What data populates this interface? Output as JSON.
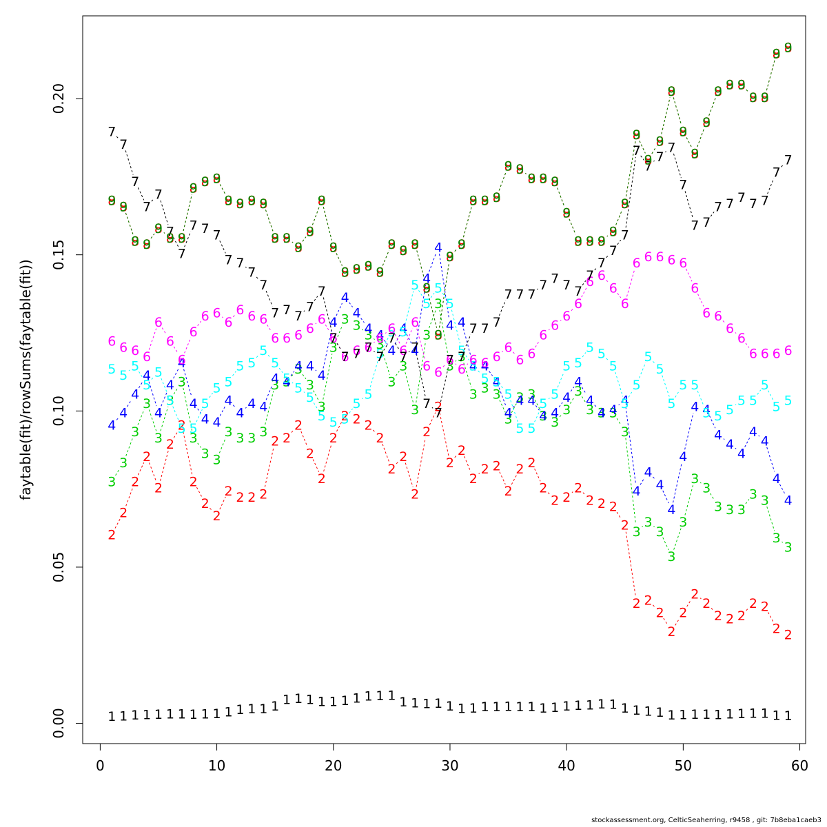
{
  "chart_data": {
    "type": "line",
    "title": "",
    "xlabel": "",
    "ylabel": "faytable(fit)/rowSums(faytable(fit))",
    "xlim": [
      -1.5,
      60.5
    ],
    "ylim": [
      -0.0065,
      0.2265
    ],
    "xticks": [
      0,
      10,
      20,
      30,
      40,
      50,
      60
    ],
    "yticks": [
      0.0,
      0.05,
      0.1,
      0.15,
      0.2
    ],
    "ytick_labels": [
      "0.00",
      "0.05",
      "0.10",
      "0.15",
      "0.20"
    ],
    "grid": false,
    "legend": "none",
    "x": [
      1,
      2,
      3,
      4,
      5,
      6,
      7,
      8,
      9,
      10,
      11,
      12,
      13,
      14,
      15,
      16,
      17,
      18,
      19,
      20,
      21,
      22,
      23,
      24,
      25,
      26,
      27,
      28,
      29,
      30,
      31,
      32,
      33,
      34,
      35,
      36,
      37,
      38,
      39,
      40,
      41,
      42,
      43,
      44,
      45,
      46,
      47,
      48,
      49,
      50,
      51,
      52,
      53,
      54,
      55,
      56,
      57,
      58,
      59
    ],
    "series": [
      {
        "label": "1",
        "color": "#000000",
        "values": [
          0.0023,
          0.0024,
          0.0028,
          0.0029,
          0.003,
          0.0031,
          0.0031,
          0.003,
          0.0031,
          0.0032,
          0.0038,
          0.0045,
          0.0048,
          0.0047,
          0.0056,
          0.0077,
          0.0081,
          0.0077,
          0.0071,
          0.0071,
          0.0074,
          0.0082,
          0.0088,
          0.0089,
          0.0091,
          0.007,
          0.0066,
          0.0064,
          0.0065,
          0.0056,
          0.0049,
          0.005,
          0.0054,
          0.0054,
          0.0055,
          0.0054,
          0.0054,
          0.005,
          0.0052,
          0.0056,
          0.0059,
          0.006,
          0.0063,
          0.0062,
          0.005,
          0.0043,
          0.004,
          0.0036,
          0.0028,
          0.0029,
          0.003,
          0.003,
          0.0029,
          0.0031,
          0.0032,
          0.0033,
          0.0033,
          0.0027,
          0.0025
        ]
      },
      {
        "label": "2",
        "color": "#ff0000",
        "values": [
          0.0605,
          0.0675,
          0.0775,
          0.0855,
          0.0755,
          0.0895,
          0.0955,
          0.0775,
          0.0705,
          0.0665,
          0.0745,
          0.0725,
          0.0725,
          0.0735,
          0.0905,
          0.0915,
          0.0955,
          0.0865,
          0.0785,
          0.0915,
          0.0985,
          0.0975,
          0.0955,
          0.0915,
          0.0815,
          0.0855,
          0.0735,
          0.0935,
          0.1015,
          0.0835,
          0.0875,
          0.0785,
          0.0815,
          0.0825,
          0.0745,
          0.0815,
          0.0835,
          0.0755,
          0.0715,
          0.0725,
          0.0755,
          0.0715,
          0.0705,
          0.0695,
          0.0635,
          0.0385,
          0.0395,
          0.0355,
          0.0295,
          0.0355,
          0.0415,
          0.0385,
          0.0345,
          0.0335,
          0.0345,
          0.0385,
          0.0375,
          0.0305,
          0.0285
        ]
      },
      {
        "label": "3",
        "color": "#00cd00",
        "values": [
          0.0775,
          0.0835,
          0.0935,
          0.1025,
          0.0915,
          0.1035,
          0.1095,
          0.0915,
          0.0865,
          0.0845,
          0.0935,
          0.0915,
          0.0915,
          0.0935,
          0.1085,
          0.1095,
          0.1135,
          0.1085,
          0.1015,
          0.1205,
          0.1295,
          0.1275,
          0.1245,
          0.1215,
          0.1095,
          0.1145,
          0.1005,
          0.1245,
          0.1345,
          0.1145,
          0.1175,
          0.1055,
          0.1075,
          0.1055,
          0.0975,
          0.1045,
          0.1055,
          0.0985,
          0.0965,
          0.1005,
          0.1065,
          0.1005,
          0.0995,
          0.0995,
          0.0935,
          0.0615,
          0.0645,
          0.0615,
          0.0535,
          0.0645,
          0.0785,
          0.0755,
          0.0695,
          0.0685,
          0.0685,
          0.0735,
          0.0715,
          0.0595,
          0.0565
        ]
      },
      {
        "label": "4",
        "color": "#0000ff",
        "values": [
          0.0955,
          0.0995,
          0.1055,
          0.1115,
          0.0995,
          0.1085,
          0.1155,
          0.1025,
          0.0975,
          0.0965,
          0.1035,
          0.0995,
          0.1025,
          0.1015,
          0.1105,
          0.1095,
          0.1145,
          0.1145,
          0.1115,
          0.1285,
          0.1365,
          0.1315,
          0.1265,
          0.1245,
          0.1195,
          0.1265,
          0.1195,
          0.1425,
          0.1525,
          0.1275,
          0.1285,
          0.1145,
          0.1145,
          0.1095,
          0.0995,
          0.1035,
          0.1035,
          0.0985,
          0.0995,
          0.1045,
          0.1095,
          0.1035,
          0.0995,
          0.1005,
          0.1035,
          0.0745,
          0.0805,
          0.0765,
          0.0685,
          0.0855,
          0.1015,
          0.1005,
          0.0925,
          0.0895,
          0.0865,
          0.0935,
          0.0905,
          0.0785,
          0.0715
        ]
      },
      {
        "label": "5",
        "color": "#00ffff",
        "values": [
          0.1135,
          0.1115,
          0.1145,
          0.1085,
          0.1125,
          0.1035,
          0.0945,
          0.0945,
          0.1025,
          0.1075,
          0.1095,
          0.1145,
          0.1155,
          0.1195,
          0.1155,
          0.1105,
          0.1075,
          0.1045,
          0.0985,
          0.0965,
          0.0975,
          0.1025,
          0.1055,
          0.1185,
          0.1255,
          0.1255,
          0.1405,
          0.1345,
          0.1395,
          0.1345,
          0.1195,
          0.1145,
          0.1105,
          0.1095,
          0.1055,
          0.0945,
          0.0945,
          0.1025,
          0.1055,
          0.1145,
          0.1155,
          0.1205,
          0.1185,
          0.1145,
          0.1025,
          0.1085,
          0.1175,
          0.1135,
          0.1025,
          0.1085,
          0.1085,
          0.0995,
          0.0985,
          0.1005,
          0.1035,
          0.1035,
          0.1085,
          0.1015,
          0.1035
        ]
      },
      {
        "label": "6",
        "color": "#ff00ff",
        "values": [
          0.1225,
          0.1205,
          0.1195,
          0.1175,
          0.1285,
          0.1225,
          0.1165,
          0.1255,
          0.1305,
          0.1315,
          0.1285,
          0.1325,
          0.1305,
          0.1295,
          0.1235,
          0.1235,
          0.1245,
          0.1265,
          0.1295,
          0.1235,
          0.1175,
          0.1195,
          0.1205,
          0.1235,
          0.1265,
          0.1195,
          0.1285,
          0.1145,
          0.1125,
          0.1165,
          0.1135,
          0.1165,
          0.1155,
          0.1175,
          0.1205,
          0.1165,
          0.1185,
          0.1245,
          0.1275,
          0.1305,
          0.1345,
          0.1415,
          0.1435,
          0.1395,
          0.1345,
          0.1475,
          0.1495,
          0.1495,
          0.1485,
          0.1475,
          0.1395,
          0.1315,
          0.1305,
          0.1265,
          0.1235,
          0.1185,
          0.1185,
          0.1185,
          0.1195
        ]
      },
      {
        "label": "7",
        "color": "#000000",
        "values": [
          0.1895,
          0.1855,
          0.1735,
          0.1655,
          0.1695,
          0.1575,
          0.1505,
          0.1595,
          0.1585,
          0.1565,
          0.1485,
          0.1475,
          0.1445,
          0.1405,
          0.1315,
          0.1325,
          0.1305,
          0.1335,
          0.1385,
          0.1235,
          0.1175,
          0.1185,
          0.1205,
          0.1175,
          0.1235,
          0.1175,
          0.1205,
          0.1025,
          0.0995,
          0.1165,
          0.1175,
          0.1265,
          0.1265,
          0.1285,
          0.1375,
          0.1375,
          0.1375,
          0.1405,
          0.1425,
          0.1405,
          0.1385,
          0.1435,
          0.1475,
          0.1515,
          0.1565,
          0.1835,
          0.1785,
          0.1815,
          0.1845,
          0.1725,
          0.1595,
          0.1605,
          0.1655,
          0.1665,
          0.1685,
          0.1665,
          0.1675,
          0.1765,
          0.1805
        ]
      },
      {
        "label": "8",
        "color": "#ff0000",
        "values": [
          0.1675,
          0.1655,
          0.1545,
          0.1535,
          0.1585,
          0.1555,
          0.1555,
          0.1715,
          0.1735,
          0.1745,
          0.1675,
          0.1665,
          0.1675,
          0.1665,
          0.1555,
          0.1555,
          0.1525,
          0.1575,
          0.1675,
          0.1525,
          0.1445,
          0.1455,
          0.1465,
          0.1445,
          0.1535,
          0.1515,
          0.1535,
          0.1395,
          0.1245,
          0.1495,
          0.1535,
          0.1675,
          0.1675,
          0.1685,
          0.1785,
          0.1775,
          0.1745,
          0.1745,
          0.1735,
          0.1635,
          0.1545,
          0.1545,
          0.1545,
          0.1575,
          0.1665,
          0.1885,
          0.1805,
          0.1865,
          0.2025,
          0.1895,
          0.1825,
          0.1925,
          0.2025,
          0.2045,
          0.2045,
          0.2005,
          0.2005,
          0.2145,
          0.2165
        ]
      },
      {
        "label": "9",
        "color": "#008b00",
        "values": [
          0.1675,
          0.1655,
          0.1545,
          0.1535,
          0.1585,
          0.1555,
          0.1555,
          0.1715,
          0.1735,
          0.1745,
          0.1675,
          0.1665,
          0.1675,
          0.1665,
          0.1555,
          0.1555,
          0.1525,
          0.1575,
          0.1675,
          0.1525,
          0.1445,
          0.1455,
          0.1465,
          0.1445,
          0.1535,
          0.1515,
          0.1535,
          0.1395,
          0.1245,
          0.1495,
          0.1535,
          0.1675,
          0.1675,
          0.1685,
          0.1785,
          0.1775,
          0.1745,
          0.1745,
          0.1735,
          0.1635,
          0.1545,
          0.1545,
          0.1545,
          0.1575,
          0.1665,
          0.1885,
          0.1805,
          0.1865,
          0.2025,
          0.1895,
          0.1825,
          0.1925,
          0.2025,
          0.2045,
          0.2045,
          0.2005,
          0.2005,
          0.2145,
          0.2165
        ]
      }
    ]
  },
  "footer_text": "stockassessment.org, CelticSeaherring, r9458 , git: 7b8eba1caeb3"
}
